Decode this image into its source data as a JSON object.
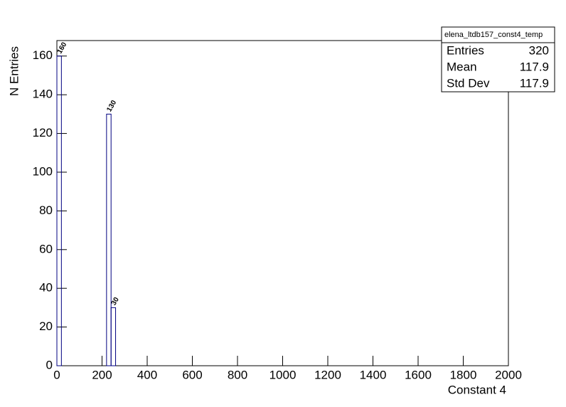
{
  "chart_data": {
    "type": "histogram",
    "title": "elena_ltdb157_const4_temp",
    "x_label": "Constant 4",
    "y_label": "N Entries",
    "bins": [
      0,
      20,
      220,
      240,
      260
    ],
    "counts": [
      160,
      0,
      130,
      30
    ],
    "color": "#000080",
    "xlim": [
      0,
      2000
    ],
    "xticks": [
      0,
      200,
      400,
      600,
      800,
      1000,
      1200,
      1400,
      1600,
      1800,
      2000
    ],
    "ylim": [
      0,
      168
    ],
    "yticks": [
      0,
      20,
      40,
      60,
      80,
      100,
      120,
      140,
      160
    ],
    "stats": {
      "labels": [
        "Entries",
        "Mean",
        "Std Dev"
      ],
      "values": [
        320,
        117.9,
        117.9
      ]
    }
  }
}
